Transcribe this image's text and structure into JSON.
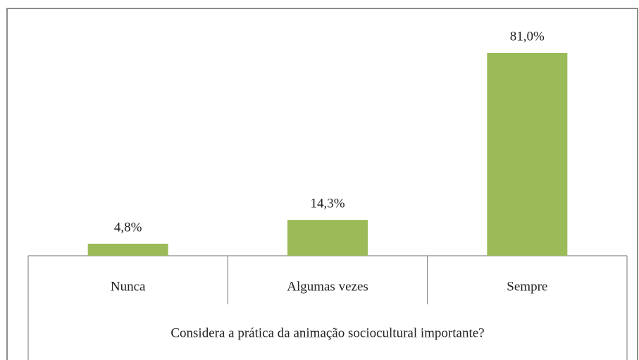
{
  "chart_data": {
    "type": "bar",
    "categories": [
      "Nunca",
      "Algumas vezes",
      "Sempre"
    ],
    "values": [
      4.8,
      14.3,
      81.0
    ],
    "value_labels": [
      "4,8%",
      "14,3%",
      "81,0%"
    ],
    "color": "#9bbb59",
    "xlabel": "Considera a prática da animação sociocultural importante?"
  }
}
